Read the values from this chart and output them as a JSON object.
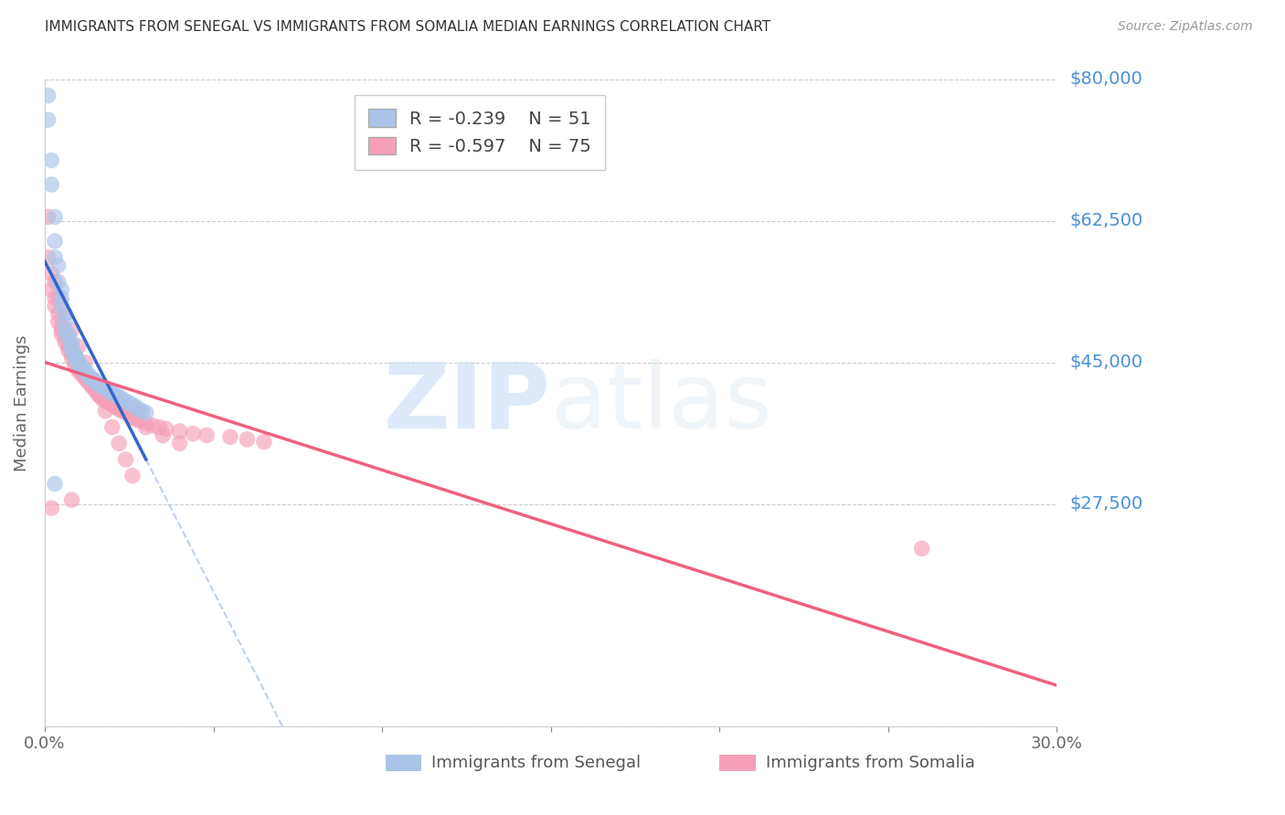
{
  "title": "IMMIGRANTS FROM SENEGAL VS IMMIGRANTS FROM SOMALIA MEDIAN EARNINGS CORRELATION CHART",
  "source": "Source: ZipAtlas.com",
  "ylabel": "Median Earnings",
  "yticks": [
    0,
    27500,
    45000,
    62500,
    80000
  ],
  "ytick_labels": [
    "",
    "$27,500",
    "$45,000",
    "$62,500",
    "$80,000"
  ],
  "xlim": [
    0.0,
    0.3
  ],
  "ylim": [
    0,
    80000
  ],
  "senegal_color": "#aac4e8",
  "somalia_color": "#f5a0b8",
  "senegal_line_color": "#3366cc",
  "somalia_line_color": "#f06080",
  "dashed_line_color": "#aac4e8",
  "legend_R_senegal": "R = -0.239",
  "legend_N_senegal": "N = 51",
  "legend_R_somalia": "R = -0.597",
  "legend_N_somalia": "N = 75",
  "watermark_zip": "ZIP",
  "watermark_atlas": "atlas",
  "senegal_x": [
    0.001,
    0.002,
    0.002,
    0.003,
    0.003,
    0.003,
    0.004,
    0.004,
    0.005,
    0.005,
    0.005,
    0.006,
    0.006,
    0.006,
    0.007,
    0.007,
    0.008,
    0.008,
    0.008,
    0.009,
    0.009,
    0.009,
    0.01,
    0.01,
    0.01,
    0.011,
    0.011,
    0.012,
    0.012,
    0.013,
    0.013,
    0.014,
    0.015,
    0.015,
    0.016,
    0.017,
    0.018,
    0.019,
    0.02,
    0.021,
    0.022,
    0.023,
    0.024,
    0.025,
    0.026,
    0.027,
    0.028,
    0.029,
    0.03,
    0.003,
    0.001
  ],
  "senegal_y": [
    75000,
    70000,
    67000,
    63000,
    60000,
    58000,
    57000,
    55000,
    54000,
    53000,
    52000,
    51000,
    50000,
    49000,
    48500,
    48000,
    47500,
    47000,
    46500,
    46000,
    45800,
    45500,
    45200,
    45000,
    44800,
    44500,
    44200,
    44000,
    43800,
    43500,
    43200,
    43000,
    42800,
    42500,
    42200,
    42000,
    41800,
    41500,
    41200,
    41000,
    40800,
    40500,
    40200,
    40000,
    39800,
    39500,
    39200,
    39000,
    38800,
    30000,
    78000
  ],
  "somalia_x": [
    0.001,
    0.001,
    0.002,
    0.002,
    0.003,
    0.003,
    0.004,
    0.004,
    0.005,
    0.005,
    0.005,
    0.006,
    0.006,
    0.007,
    0.007,
    0.008,
    0.008,
    0.009,
    0.009,
    0.01,
    0.01,
    0.011,
    0.011,
    0.012,
    0.012,
    0.013,
    0.013,
    0.014,
    0.014,
    0.015,
    0.015,
    0.016,
    0.016,
    0.017,
    0.017,
    0.018,
    0.019,
    0.02,
    0.021,
    0.022,
    0.023,
    0.024,
    0.025,
    0.026,
    0.027,
    0.028,
    0.03,
    0.032,
    0.034,
    0.036,
    0.04,
    0.044,
    0.048,
    0.055,
    0.06,
    0.065,
    0.003,
    0.004,
    0.006,
    0.008,
    0.01,
    0.012,
    0.014,
    0.016,
    0.018,
    0.02,
    0.022,
    0.024,
    0.026,
    0.03,
    0.035,
    0.04,
    0.002,
    0.008,
    0.26
  ],
  "somalia_y": [
    63000,
    58000,
    56000,
    54000,
    53000,
    52000,
    51000,
    50000,
    49500,
    49000,
    48500,
    48000,
    47500,
    47000,
    46500,
    46000,
    45500,
    45000,
    44500,
    44200,
    44000,
    43800,
    43500,
    43200,
    43000,
    42800,
    42500,
    42200,
    42000,
    41800,
    41500,
    41200,
    41000,
    40800,
    40500,
    40200,
    40000,
    39800,
    39500,
    39200,
    39000,
    38800,
    38500,
    38200,
    38000,
    37800,
    37500,
    37200,
    37000,
    36800,
    36500,
    36200,
    36000,
    35800,
    35500,
    35200,
    55000,
    53000,
    51000,
    49000,
    47000,
    45000,
    43000,
    41000,
    39000,
    37000,
    35000,
    33000,
    31000,
    37000,
    36000,
    35000,
    27000,
    28000,
    22000
  ]
}
